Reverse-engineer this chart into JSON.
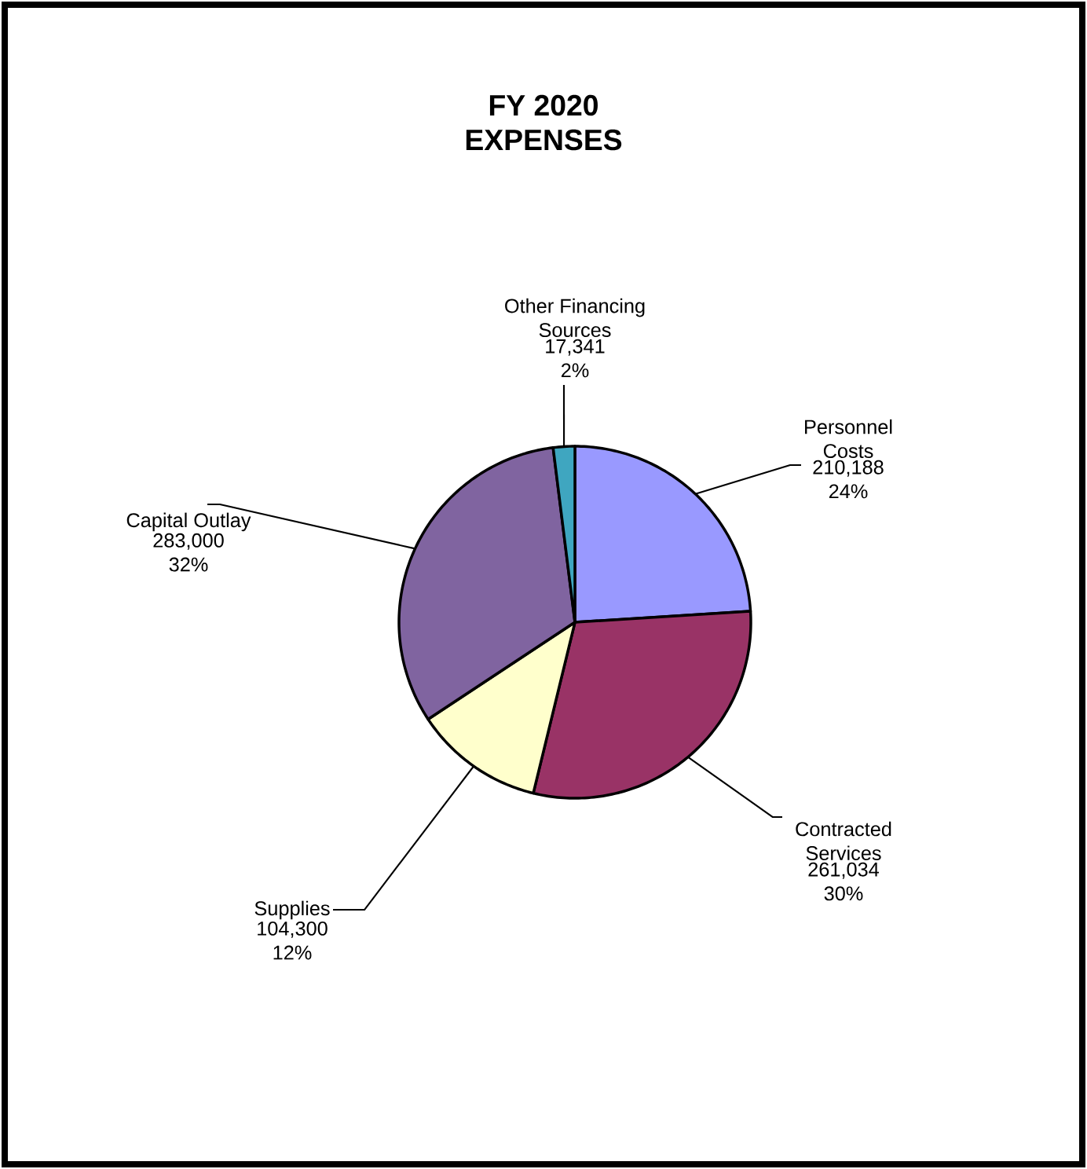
{
  "chart_data": {
    "type": "pie",
    "title": "FY 2020 EXPENSES",
    "categories": [
      "Personnel Costs",
      "Contracted Services",
      "Supplies",
      "Capital Outlay",
      "Other Financing Sources"
    ],
    "values": [
      210188,
      261034,
      104300,
      283000,
      17341
    ],
    "value_labels": [
      "210,188 24%",
      "261,034 30%",
      "104,300 12%",
      "283,000 32%",
      "17,341 2%"
    ],
    "colors": [
      "#9999ff",
      "#993366",
      "#ffffcc",
      "#8064a0",
      "#3fa6c0"
    ]
  }
}
